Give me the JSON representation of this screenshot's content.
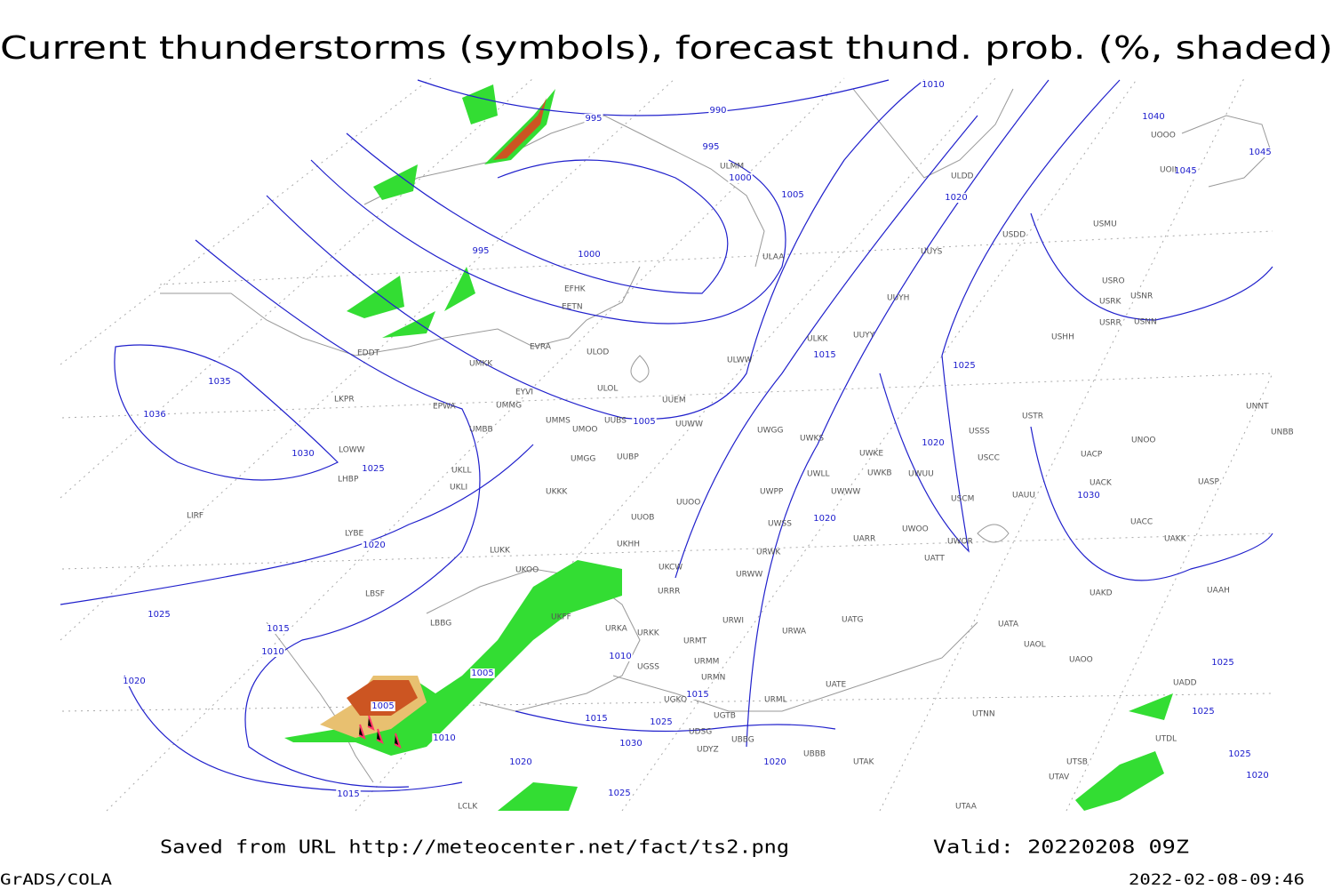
{
  "header": {
    "title": "Current thunderstorms (symbols), forecast thund. prob. (%, shaded)"
  },
  "footer": {
    "source": "Saved from URL http://meteocenter.net/fact/ts2.png",
    "valid": "Valid: 20220208 09Z",
    "software": "GrADS/COLA",
    "timestamp": "2022-02-08-09:46"
  },
  "map": {
    "isobar_labels": [
      995,
      990,
      995,
      1000,
      1005,
      1010,
      995,
      1000,
      1020,
      1015,
      1025,
      1020,
      1030,
      1035,
      1036,
      1030,
      1025,
      1020,
      1025,
      1015,
      1010,
      1020,
      1005,
      1005,
      1010,
      1015,
      1025,
      1030,
      1020,
      1015,
      1025,
      1020,
      1020,
      1040,
      1045,
      1045,
      1025,
      1025,
      1025,
      1020,
      1010,
      1005,
      1015
    ],
    "stations": [
      "ULMM",
      "ULDD",
      "USDD",
      "USMU",
      "UOOO",
      "UOII",
      "ULAA",
      "UUYS",
      "EFHK",
      "EETN",
      "USRO",
      "USRK",
      "USNR",
      "USRR",
      "USNN",
      "UUYH",
      "ULKK",
      "UUYY",
      "USHH",
      "EVRA",
      "ULOD",
      "ULWW",
      "UMKK",
      "EDDT",
      "EYVI",
      "ULOL",
      "UUEM",
      "LKPR",
      "EPWA",
      "UMMG",
      "UMMS",
      "UMOO",
      "UUBS",
      "UUWW",
      "UWGG",
      "UWKS",
      "USSS",
      "USTR",
      "UNNT",
      "UNBB",
      "UMBB",
      "LOWW",
      "UKLL",
      "UKLI",
      "LHBP",
      "UMGG",
      "UUBP",
      "UWKE",
      "UWKB",
      "UWUU",
      "USCC",
      "UACP",
      "UNOO",
      "UACK",
      "UASP",
      "UWLL",
      "UWWW",
      "UWPP",
      "USCM",
      "UAUU",
      "UKKK",
      "UUOO",
      "LIRF",
      "LYBE",
      "UUOB",
      "UWSS",
      "UWOO",
      "UWOR",
      "UACC",
      "UAKK",
      "UARR",
      "LUKK",
      "UKHH",
      "URWK",
      "UATT",
      "UKCW",
      "UKOO",
      "URWW",
      "URRR",
      "LBSF",
      "UAKD",
      "UAAH",
      "UKFF",
      "LBBG",
      "URKA",
      "URKK",
      "URWI",
      "UATG",
      "UATA",
      "URWA",
      "URMT",
      "UAOL",
      "UAOO",
      "URMM",
      "UGSS",
      "UATE",
      "URMN",
      "UADD",
      "UGKO",
      "UGTB",
      "URML",
      "UTNN",
      "UDSG",
      "UBBG",
      "UDYZ",
      "UBBB",
      "UTAK",
      "UTDL",
      "UTSB",
      "UTAV",
      "UTAA",
      "LCLK"
    ]
  }
}
